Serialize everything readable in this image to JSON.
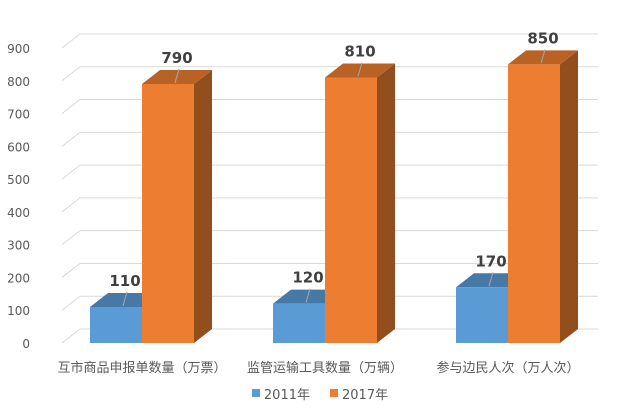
{
  "chart_data": {
    "type": "bar",
    "categories": [
      "互市商品申报单数量（万票）",
      "监管运输工具数量（万辆）",
      "参与边民人次（万人次）"
    ],
    "series": [
      {
        "name": "2011年",
        "values": [
          110,
          120,
          170
        ],
        "color": "#5b9bd5"
      },
      {
        "name": "2017年",
        "values": [
          790,
          810,
          850
        ],
        "color": "#ed7d31"
      }
    ],
    "ylim": [
      0,
      900
    ],
    "yticks": [
      0,
      100,
      200,
      300,
      400,
      500,
      600,
      700,
      800,
      900
    ],
    "grid": true,
    "legend_position": "bottom",
    "style": "3d-clustered-column"
  }
}
